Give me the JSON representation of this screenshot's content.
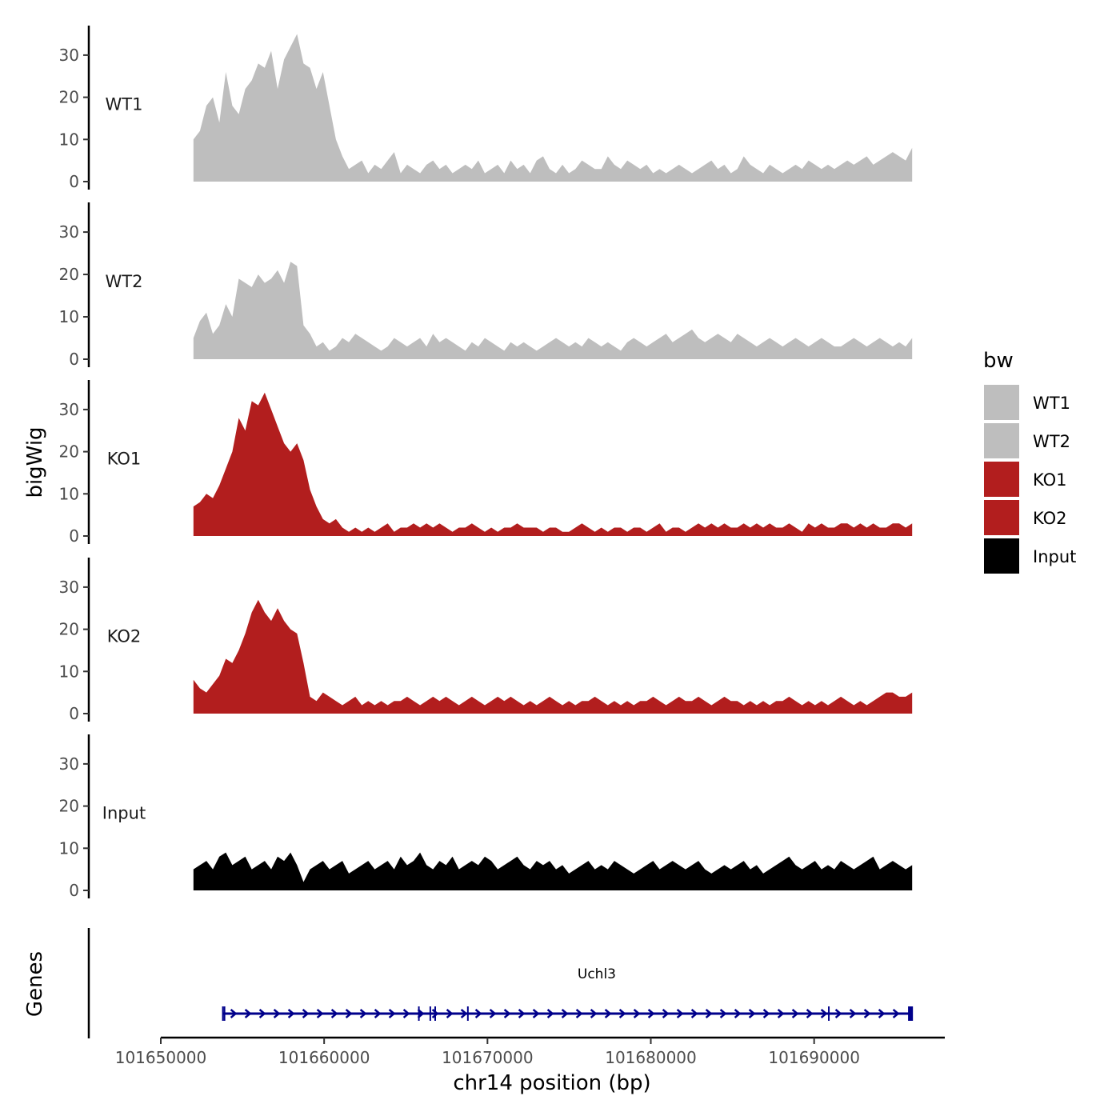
{
  "chart_data": {
    "type": "area",
    "title": "",
    "ylabel": "bigWig",
    "genes_label": "Genes",
    "xlabel": "chr14 position (bp)",
    "xlim": [
      101650000,
      101698000
    ],
    "data_range": [
      101652000,
      101696000
    ],
    "x_ticks": [
      101650000,
      101660000,
      101670000,
      101680000,
      101690000
    ],
    "x_tick_labels": [
      "101650000",
      "101660000",
      "101670000",
      "101680000",
      "101690000"
    ],
    "ylim": [
      0,
      37
    ],
    "y_ticks": [
      0,
      10,
      20,
      30
    ],
    "y_tick_labels": [
      "0",
      "10",
      "20",
      "30"
    ],
    "legend": {
      "title": "bw",
      "position": "right",
      "entries": [
        {
          "label": "WT1",
          "color": "#bebebe"
        },
        {
          "label": "WT2",
          "color": "#bebebe"
        },
        {
          "label": "KO1",
          "color": "#b21e1e"
        },
        {
          "label": "KO2",
          "color": "#b21e1e"
        },
        {
          "label": "Input",
          "color": "#000000"
        }
      ]
    },
    "series": [
      {
        "name": "WT1",
        "color": "#bebebe",
        "values": [
          10,
          12,
          18,
          20,
          14,
          26,
          18,
          16,
          22,
          24,
          28,
          27,
          31,
          22,
          29,
          32,
          35,
          28,
          27,
          22,
          26,
          18,
          10,
          6,
          3,
          4,
          5,
          2,
          4,
          3,
          5,
          7,
          2,
          4,
          3,
          2,
          4,
          5,
          3,
          4,
          2,
          3,
          4,
          3,
          5,
          2,
          3,
          4,
          2,
          5,
          3,
          4,
          2,
          5,
          6,
          3,
          2,
          4,
          2,
          3,
          5,
          4,
          3,
          3,
          6,
          4,
          3,
          5,
          4,
          3,
          4,
          2,
          3,
          2,
          3,
          4,
          3,
          2,
          3,
          4,
          5,
          3,
          4,
          2,
          3,
          6,
          4,
          3,
          2,
          4,
          3,
          2,
          3,
          4,
          3,
          5,
          4,
          3,
          4,
          3,
          4,
          5,
          4,
          5,
          6,
          4,
          5,
          6,
          7,
          6,
          5,
          8
        ]
      },
      {
        "name": "WT2",
        "color": "#bebebe",
        "values": [
          5,
          9,
          11,
          6,
          8,
          13,
          10,
          19,
          18,
          17,
          20,
          18,
          19,
          21,
          18,
          23,
          22,
          8,
          6,
          3,
          4,
          2,
          3,
          5,
          4,
          6,
          5,
          4,
          3,
          2,
          3,
          5,
          4,
          3,
          4,
          5,
          3,
          6,
          4,
          5,
          4,
          3,
          2,
          4,
          3,
          5,
          4,
          3,
          2,
          4,
          3,
          4,
          3,
          2,
          3,
          4,
          5,
          4,
          3,
          4,
          3,
          5,
          4,
          3,
          4,
          3,
          2,
          4,
          5,
          4,
          3,
          4,
          5,
          6,
          4,
          5,
          6,
          7,
          5,
          4,
          5,
          6,
          5,
          4,
          6,
          5,
          4,
          3,
          4,
          5,
          4,
          3,
          4,
          5,
          4,
          3,
          4,
          5,
          4,
          3,
          3,
          4,
          5,
          4,
          3,
          4,
          5,
          4,
          3,
          4,
          3,
          5
        ]
      },
      {
        "name": "KO1",
        "color": "#b21e1e",
        "values": [
          7,
          8,
          10,
          9,
          12,
          16,
          20,
          28,
          25,
          32,
          31,
          34,
          30,
          26,
          22,
          20,
          22,
          18,
          11,
          7,
          4,
          3,
          4,
          2,
          1,
          2,
          1,
          2,
          1,
          2,
          3,
          1,
          2,
          2,
          3,
          2,
          3,
          2,
          3,
          2,
          1,
          2,
          2,
          3,
          2,
          1,
          2,
          1,
          2,
          2,
          3,
          2,
          2,
          2,
          1,
          2,
          2,
          1,
          1,
          2,
          3,
          2,
          1,
          2,
          1,
          2,
          2,
          1,
          2,
          2,
          1,
          2,
          3,
          1,
          2,
          2,
          1,
          2,
          3,
          2,
          3,
          2,
          3,
          2,
          2,
          3,
          2,
          3,
          2,
          3,
          2,
          2,
          3,
          2,
          1,
          3,
          2,
          3,
          2,
          2,
          3,
          3,
          2,
          3,
          2,
          3,
          2,
          2,
          3,
          3,
          2,
          3
        ]
      },
      {
        "name": "KO2",
        "color": "#b21e1e",
        "values": [
          8,
          6,
          5,
          7,
          9,
          13,
          12,
          15,
          19,
          24,
          27,
          24,
          22,
          25,
          22,
          20,
          19,
          12,
          4,
          3,
          5,
          4,
          3,
          2,
          3,
          4,
          2,
          3,
          2,
          3,
          2,
          3,
          3,
          4,
          3,
          2,
          3,
          4,
          3,
          4,
          3,
          2,
          3,
          4,
          3,
          2,
          3,
          4,
          3,
          4,
          3,
          2,
          3,
          2,
          3,
          4,
          3,
          2,
          3,
          2,
          3,
          3,
          4,
          3,
          2,
          3,
          2,
          3,
          2,
          3,
          3,
          4,
          3,
          2,
          3,
          4,
          3,
          3,
          4,
          3,
          2,
          3,
          4,
          3,
          3,
          2,
          3,
          2,
          3,
          2,
          3,
          3,
          4,
          3,
          2,
          3,
          2,
          3,
          2,
          3,
          4,
          3,
          2,
          3,
          2,
          3,
          4,
          5,
          5,
          4,
          4,
          5
        ]
      },
      {
        "name": "Input",
        "color": "#000000",
        "values": [
          5,
          6,
          7,
          5,
          8,
          9,
          6,
          7,
          8,
          5,
          6,
          7,
          5,
          8,
          7,
          9,
          6,
          2,
          5,
          6,
          7,
          5,
          6,
          7,
          4,
          5,
          6,
          7,
          5,
          6,
          7,
          5,
          8,
          6,
          7,
          9,
          6,
          5,
          7,
          6,
          8,
          5,
          6,
          7,
          6,
          8,
          7,
          5,
          6,
          7,
          8,
          6,
          5,
          7,
          6,
          7,
          5,
          6,
          4,
          5,
          6,
          7,
          5,
          6,
          5,
          7,
          6,
          5,
          4,
          5,
          6,
          7,
          5,
          6,
          7,
          6,
          5,
          6,
          7,
          5,
          4,
          5,
          6,
          5,
          6,
          7,
          5,
          6,
          4,
          5,
          6,
          7,
          8,
          6,
          5,
          6,
          7,
          5,
          6,
          5,
          7,
          6,
          5,
          6,
          7,
          8,
          5,
          6,
          7,
          6,
          5,
          6
        ]
      }
    ],
    "genes": [
      {
        "name": "Uchl3",
        "start": 101653800,
        "end": 101696000,
        "strand": "+",
        "color": "#00008b",
        "exons": [
          101653800,
          101653900,
          101665800,
          101666500,
          101666800,
          101668800,
          101690900,
          101695800,
          101696000
        ]
      }
    ]
  }
}
